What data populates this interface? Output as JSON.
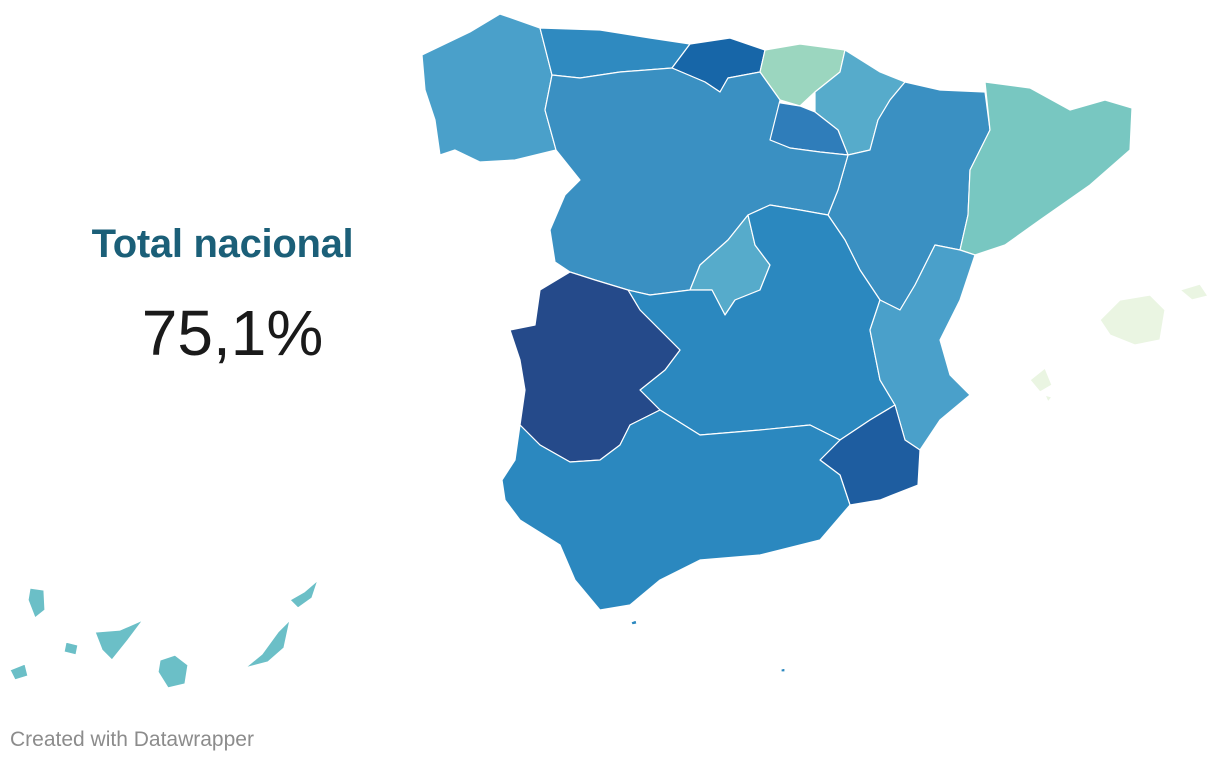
{
  "headline": "Total nacional",
  "national_value": "75,1%",
  "footer": "Created with Datawrapper",
  "colors": {
    "headline": "#1b5f78",
    "scale_lowest": "#eaf5e2",
    "scale_low": "#9bd6bf",
    "scale_mid_low": "#78c7c1",
    "scale_mid": "#56abcb",
    "scale_mid_high": "#3a90c2",
    "scale_high": "#2b88bf",
    "scale_very_high": "#1766a8",
    "scale_highest": "#254a8a"
  },
  "regions": [
    {
      "name": "Galicia",
      "color": "#4aa0ca"
    },
    {
      "name": "Asturias",
      "color": "#2f8ac0"
    },
    {
      "name": "Cantabria",
      "color": "#1766a8"
    },
    {
      "name": "País Vasco",
      "color": "#9bd6bf"
    },
    {
      "name": "Navarra",
      "color": "#56abcb"
    },
    {
      "name": "La Rioja",
      "color": "#2f7dba"
    },
    {
      "name": "Aragón",
      "color": "#3a90c2"
    },
    {
      "name": "Cataluña",
      "color": "#78c7c1"
    },
    {
      "name": "Castilla y León",
      "color": "#3a90c2"
    },
    {
      "name": "Madrid",
      "color": "#56abcb"
    },
    {
      "name": "Castilla-La Mancha",
      "color": "#2b88bf"
    },
    {
      "name": "Extremadura",
      "color": "#254a8a"
    },
    {
      "name": "Comunitat Valenciana",
      "color": "#4aa0ca"
    },
    {
      "name": "Murcia",
      "color": "#1e5da0"
    },
    {
      "name": "Andalucía",
      "color": "#2b88bf"
    },
    {
      "name": "Illes Balears",
      "color": "#eaf5e2"
    },
    {
      "name": "Canarias",
      "color": "#6bbfc7"
    },
    {
      "name": "Ceuta",
      "color": "#2b88bf"
    },
    {
      "name": "Melilla",
      "color": "#2b88bf"
    }
  ]
}
